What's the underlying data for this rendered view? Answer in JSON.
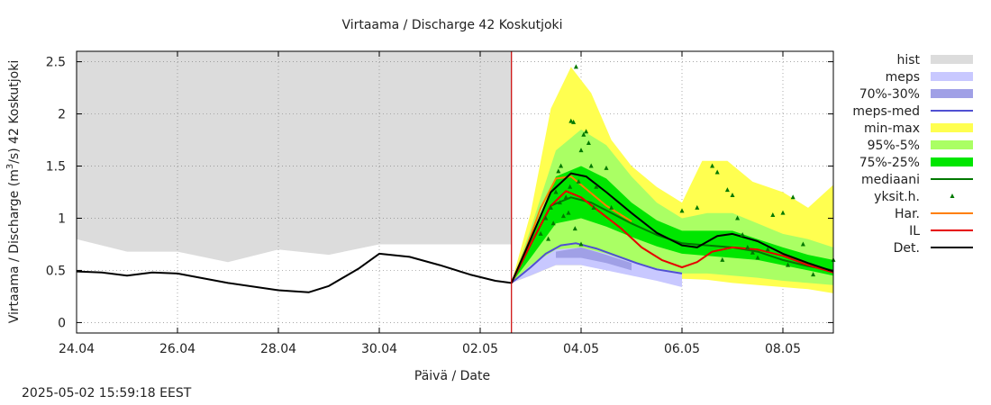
{
  "chart_data": {
    "type": "line",
    "title": "Virtaama / Discharge  42 Koskutjoki",
    "xlabel": "Päivä / Date",
    "ylabel_parts": [
      "Virtaama / Discharge (m",
      "3",
      "/s)  42 Koskutjoki"
    ],
    "ylim": [
      -0.1,
      2.6
    ],
    "xlim_days": [
      0,
      15
    ],
    "x_ticks": [
      {
        "day": 0,
        "label": "24.04"
      },
      {
        "day": 2,
        "label": "26.04"
      },
      {
        "day": 4,
        "label": "28.04"
      },
      {
        "day": 6,
        "label": "30.04"
      },
      {
        "day": 8,
        "label": "02.05"
      },
      {
        "day": 10,
        "label": "04.05"
      },
      {
        "day": 12,
        "label": "06.05"
      },
      {
        "day": 14,
        "label": "08.05"
      }
    ],
    "y_ticks": [
      {
        "value": 0,
        "label": "0"
      },
      {
        "value": 0.5,
        "label": "0.5"
      },
      {
        "value": 1,
        "label": "1"
      },
      {
        "value": 1.5,
        "label": "1.5"
      },
      {
        "value": 2,
        "label": "2"
      },
      {
        "value": 2.5,
        "label": "2.5"
      }
    ],
    "forecast_start_day": 8.62,
    "colors": {
      "hist": "#dcdcdc",
      "meps": "#c8c8ff",
      "meps_70_30": "#a0a0e6",
      "meps_med": "#5050d2",
      "min_max": "#ffff50",
      "p95_5": "#aaff64",
      "p75_25": "#00e600",
      "mediaani": "#007800",
      "yksit": "#007800",
      "har": "#ff7f00",
      "il": "#e60000",
      "det": "#000000",
      "forecast_line": "#cc0000"
    },
    "legend": [
      {
        "key": "hist",
        "label": "hist",
        "style": "box"
      },
      {
        "key": "meps",
        "label": "meps",
        "style": "box"
      },
      {
        "key": "meps_70_30",
        "label": "70%-30%",
        "style": "box"
      },
      {
        "key": "meps_med",
        "label": "meps-med",
        "style": "line"
      },
      {
        "key": "min_max",
        "label": "min-max",
        "style": "box"
      },
      {
        "key": "p95_5",
        "label": "95%-5%",
        "style": "box"
      },
      {
        "key": "p75_25",
        "label": "75%-25%",
        "style": "box"
      },
      {
        "key": "mediaani",
        "label": "mediaani",
        "style": "line"
      },
      {
        "key": "yksit",
        "label": "yksit.h.",
        "style": "point"
      },
      {
        "key": "har",
        "label": "Har.",
        "style": "line"
      },
      {
        "key": "il",
        "label": "IL",
        "style": "line"
      },
      {
        "key": "det",
        "label": "Det.",
        "style": "line"
      }
    ],
    "series": {
      "hist_upper": {
        "x": [
          0,
          1,
          2,
          3,
          4,
          5,
          6,
          7,
          8,
          8.62
        ],
        "y": [
          2.6,
          2.6,
          2.6,
          2.6,
          2.6,
          2.6,
          2.6,
          2.6,
          2.6,
          2.6
        ]
      },
      "hist_lower": {
        "x": [
          0,
          1,
          2,
          3,
          4,
          5,
          6,
          7,
          8,
          8.62
        ],
        "y": [
          0.8,
          0.68,
          0.68,
          0.58,
          0.7,
          0.65,
          0.75,
          0.75,
          0.75,
          0.75
        ]
      },
      "observed": {
        "x": [
          0,
          0.5,
          1,
          1.5,
          2,
          3,
          4,
          4.6,
          5,
          5.6,
          6,
          6.6,
          7.2,
          7.8,
          8.3,
          8.62
        ],
        "y": [
          0.49,
          0.48,
          0.45,
          0.48,
          0.47,
          0.38,
          0.31,
          0.29,
          0.35,
          0.52,
          0.66,
          0.63,
          0.55,
          0.46,
          0.4,
          0.38
        ]
      },
      "min_max_upper": {
        "x": [
          8.62,
          9,
          9.4,
          9.8,
          10.2,
          10.6,
          11,
          11.5,
          12,
          12.4,
          12.9,
          13.4,
          14,
          14.5,
          15
        ],
        "y": [
          0.38,
          1.05,
          2.05,
          2.45,
          2.2,
          1.75,
          1.5,
          1.3,
          1.15,
          1.55,
          1.55,
          1.35,
          1.25,
          1.1,
          1.32
        ]
      },
      "min_max_lower": {
        "x": [
          8.62,
          9,
          9.5,
          10,
          10.5,
          11,
          11.5,
          12,
          12.5,
          13,
          13.5,
          14,
          14.5,
          15
        ],
        "y": [
          0.38,
          0.45,
          0.55,
          0.55,
          0.52,
          0.47,
          0.44,
          0.42,
          0.41,
          0.38,
          0.36,
          0.34,
          0.32,
          0.28
        ]
      },
      "p95_upper": {
        "x": [
          8.62,
          9,
          9.5,
          10,
          10.5,
          11,
          11.5,
          12,
          12.5,
          13,
          13.5,
          14,
          14.5,
          15
        ],
        "y": [
          0.38,
          0.9,
          1.65,
          1.85,
          1.7,
          1.4,
          1.15,
          1.0,
          1.05,
          1.05,
          0.95,
          0.85,
          0.8,
          0.72
        ]
      },
      "p95_lower": {
        "x": [
          8.62,
          9,
          9.5,
          10,
          10.5,
          11,
          11.5,
          12,
          12.5,
          13,
          13.5,
          14,
          14.5,
          15
        ],
        "y": [
          0.38,
          0.5,
          0.65,
          0.65,
          0.6,
          0.55,
          0.5,
          0.47,
          0.47,
          0.45,
          0.43,
          0.4,
          0.38,
          0.36
        ]
      },
      "p75_upper": {
        "x": [
          8.62,
          9,
          9.5,
          10,
          10.5,
          11,
          11.5,
          12,
          12.5,
          13,
          13.5,
          14,
          14.5,
          15
        ],
        "y": [
          0.38,
          0.8,
          1.4,
          1.5,
          1.38,
          1.15,
          0.98,
          0.88,
          0.88,
          0.88,
          0.8,
          0.72,
          0.65,
          0.6
        ]
      },
      "p75_lower": {
        "x": [
          8.62,
          9,
          9.5,
          10,
          10.5,
          11,
          11.5,
          12,
          12.5,
          13,
          13.5,
          14,
          14.5,
          15
        ],
        "y": [
          0.38,
          0.62,
          0.95,
          1.0,
          0.92,
          0.82,
          0.73,
          0.66,
          0.64,
          0.62,
          0.6,
          0.55,
          0.5,
          0.45
        ]
      },
      "meps_upper": {
        "x": [
          8.62,
          9,
          9.5,
          10,
          10.5,
          11,
          11.5,
          12
        ],
        "y": [
          0.38,
          0.55,
          0.7,
          0.72,
          0.66,
          0.58,
          0.52,
          0.48
        ]
      },
      "meps_lower": {
        "x": [
          8.62,
          9,
          9.5,
          10,
          10.5,
          11,
          11.5,
          12
        ],
        "y": [
          0.38,
          0.45,
          0.55,
          0.55,
          0.5,
          0.45,
          0.4,
          0.34
        ]
      },
      "meps_70_upper": {
        "x": [
          9.5,
          10,
          10.5,
          11
        ],
        "y": [
          0.68,
          0.72,
          0.65,
          0.57
        ]
      },
      "meps_70_lower": {
        "x": [
          9.5,
          10,
          10.5,
          11
        ],
        "y": [
          0.62,
          0.62,
          0.57,
          0.5
        ]
      },
      "meps_med": {
        "x": [
          8.62,
          9,
          9.3,
          9.6,
          9.9,
          10.3,
          10.7,
          11.1,
          11.5,
          12
        ],
        "y": [
          0.38,
          0.53,
          0.66,
          0.74,
          0.76,
          0.71,
          0.64,
          0.57,
          0.51,
          0.47
        ]
      },
      "mediaani": {
        "x": [
          8.62,
          9,
          9.4,
          9.8,
          10.2,
          10.6,
          11,
          11.5,
          12,
          12.5,
          13,
          13.5,
          14,
          14.5,
          15
        ],
        "y": [
          0.38,
          0.75,
          1.12,
          1.2,
          1.15,
          1.05,
          0.95,
          0.84,
          0.76,
          0.74,
          0.72,
          0.68,
          0.6,
          0.54,
          0.5
        ]
      },
      "har": {
        "x": [
          8.62,
          8.9,
          9.2,
          9.5,
          9.8,
          10.1,
          10.5,
          11.0
        ],
        "y": [
          0.38,
          0.7,
          1.1,
          1.38,
          1.4,
          1.28,
          1.12,
          0.97
        ]
      },
      "il": {
        "x": [
          8.62,
          9,
          9.4,
          9.7,
          10,
          10.4,
          10.8,
          11.2,
          11.6,
          12.0,
          12.3,
          12.6,
          13,
          13.5,
          14,
          14.5,
          15
        ],
        "y": [
          0.38,
          0.75,
          1.12,
          1.26,
          1.2,
          1.05,
          0.9,
          0.72,
          0.6,
          0.53,
          0.58,
          0.68,
          0.72,
          0.7,
          0.64,
          0.55,
          0.48
        ]
      },
      "det": {
        "x": [
          8.62,
          9,
          9.4,
          9.8,
          10.1,
          10.5,
          11,
          11.5,
          12,
          12.3,
          12.7,
          13,
          13.5,
          14,
          14.5,
          15
        ],
        "y": [
          0.38,
          0.8,
          1.25,
          1.43,
          1.4,
          1.25,
          1.05,
          0.86,
          0.74,
          0.72,
          0.83,
          0.85,
          0.78,
          0.66,
          0.57,
          0.49
        ]
      },
      "yksit": {
        "x": [
          9.2,
          9.3,
          9.4,
          9.5,
          9.55,
          9.6,
          9.7,
          9.75,
          9.8,
          9.85,
          9.9,
          9.95,
          10.0,
          10.05,
          10.1,
          10.15,
          10.2,
          10.3,
          10.5,
          10.6,
          9.65,
          9.45,
          9.35,
          9.58,
          9.78,
          9.88,
          10.0,
          10.25,
          12.0,
          12.3,
          12.6,
          12.7,
          12.9,
          13.0,
          13.1,
          13.2,
          13.4,
          13.5,
          13.7,
          13.8,
          14.0,
          14.2,
          14.4,
          14.6,
          15.0,
          12.8,
          13.3,
          14.1
        ],
        "y": [
          0.85,
          1.0,
          1.1,
          1.25,
          1.45,
          1.5,
          1.2,
          1.05,
          1.93,
          1.92,
          2.45,
          1.35,
          1.65,
          1.8,
          1.83,
          1.72,
          1.5,
          1.3,
          1.48,
          1.1,
          1.02,
          0.95,
          0.8,
          1.15,
          1.3,
          0.9,
          0.75,
          1.1,
          1.07,
          1.1,
          1.5,
          1.44,
          1.27,
          1.22,
          1.0,
          0.84,
          0.67,
          0.62,
          0.7,
          1.03,
          1.05,
          1.2,
          0.75,
          0.46,
          0.6,
          0.6,
          0.72,
          0.55
        ]
      }
    }
  },
  "footer": {
    "timestamp": "2025-05-02 15:59:18 EEST"
  }
}
